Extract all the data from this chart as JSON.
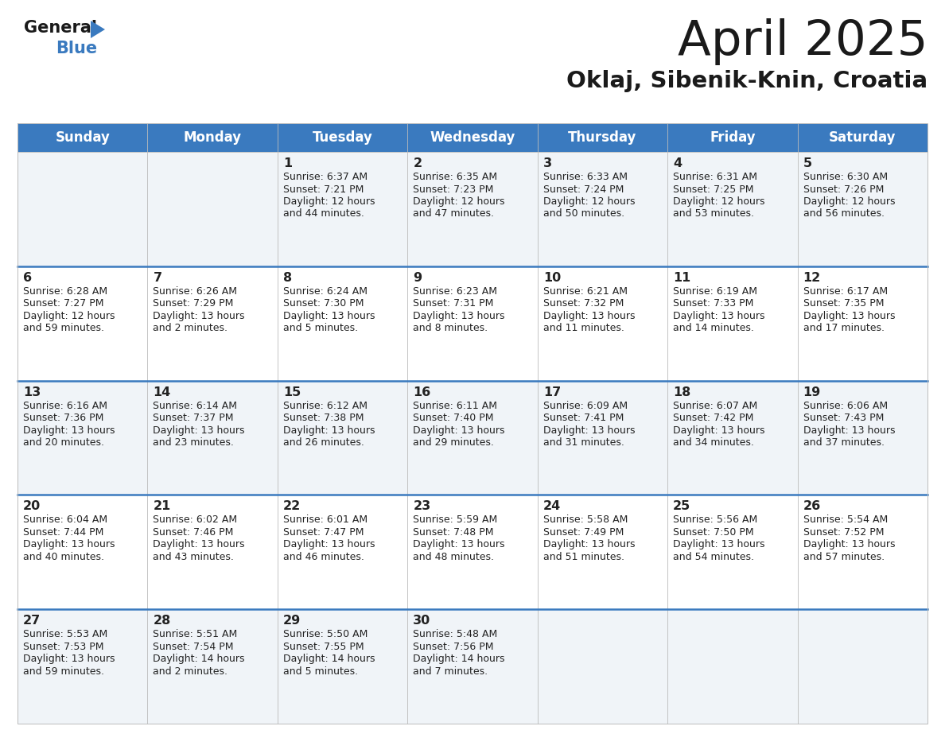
{
  "title": "April 2025",
  "subtitle": "Oklaj, Sibenik-Knin, Croatia",
  "header_bg_color": "#3a7abf",
  "header_text_color": "#ffffff",
  "day_names": [
    "Sunday",
    "Monday",
    "Tuesday",
    "Wednesday",
    "Thursday",
    "Friday",
    "Saturday"
  ],
  "bg_color": "#ffffff",
  "divider_color": "#3a7abf",
  "text_color": "#222222",
  "row_bg_odd": "#f0f4f8",
  "row_bg_even": "#ffffff",
  "calendar_data": [
    [
      {
        "day": null,
        "sunrise": null,
        "sunset": null,
        "daylight": null
      },
      {
        "day": null,
        "sunrise": null,
        "sunset": null,
        "daylight": null
      },
      {
        "day": 1,
        "sunrise": "6:37 AM",
        "sunset": "7:21 PM",
        "daylight": "12 hours and 44 minutes."
      },
      {
        "day": 2,
        "sunrise": "6:35 AM",
        "sunset": "7:23 PM",
        "daylight": "12 hours and 47 minutes."
      },
      {
        "day": 3,
        "sunrise": "6:33 AM",
        "sunset": "7:24 PM",
        "daylight": "12 hours and 50 minutes."
      },
      {
        "day": 4,
        "sunrise": "6:31 AM",
        "sunset": "7:25 PM",
        "daylight": "12 hours and 53 minutes."
      },
      {
        "day": 5,
        "sunrise": "6:30 AM",
        "sunset": "7:26 PM",
        "daylight": "12 hours and 56 minutes."
      }
    ],
    [
      {
        "day": 6,
        "sunrise": "6:28 AM",
        "sunset": "7:27 PM",
        "daylight": "12 hours and 59 minutes."
      },
      {
        "day": 7,
        "sunrise": "6:26 AM",
        "sunset": "7:29 PM",
        "daylight": "13 hours and 2 minutes."
      },
      {
        "day": 8,
        "sunrise": "6:24 AM",
        "sunset": "7:30 PM",
        "daylight": "13 hours and 5 minutes."
      },
      {
        "day": 9,
        "sunrise": "6:23 AM",
        "sunset": "7:31 PM",
        "daylight": "13 hours and 8 minutes."
      },
      {
        "day": 10,
        "sunrise": "6:21 AM",
        "sunset": "7:32 PM",
        "daylight": "13 hours and 11 minutes."
      },
      {
        "day": 11,
        "sunrise": "6:19 AM",
        "sunset": "7:33 PM",
        "daylight": "13 hours and 14 minutes."
      },
      {
        "day": 12,
        "sunrise": "6:17 AM",
        "sunset": "7:35 PM",
        "daylight": "13 hours and 17 minutes."
      }
    ],
    [
      {
        "day": 13,
        "sunrise": "6:16 AM",
        "sunset": "7:36 PM",
        "daylight": "13 hours and 20 minutes."
      },
      {
        "day": 14,
        "sunrise": "6:14 AM",
        "sunset": "7:37 PM",
        "daylight": "13 hours and 23 minutes."
      },
      {
        "day": 15,
        "sunrise": "6:12 AM",
        "sunset": "7:38 PM",
        "daylight": "13 hours and 26 minutes."
      },
      {
        "day": 16,
        "sunrise": "6:11 AM",
        "sunset": "7:40 PM",
        "daylight": "13 hours and 29 minutes."
      },
      {
        "day": 17,
        "sunrise": "6:09 AM",
        "sunset": "7:41 PM",
        "daylight": "13 hours and 31 minutes."
      },
      {
        "day": 18,
        "sunrise": "6:07 AM",
        "sunset": "7:42 PM",
        "daylight": "13 hours and 34 minutes."
      },
      {
        "day": 19,
        "sunrise": "6:06 AM",
        "sunset": "7:43 PM",
        "daylight": "13 hours and 37 minutes."
      }
    ],
    [
      {
        "day": 20,
        "sunrise": "6:04 AM",
        "sunset": "7:44 PM",
        "daylight": "13 hours and 40 minutes."
      },
      {
        "day": 21,
        "sunrise": "6:02 AM",
        "sunset": "7:46 PM",
        "daylight": "13 hours and 43 minutes."
      },
      {
        "day": 22,
        "sunrise": "6:01 AM",
        "sunset": "7:47 PM",
        "daylight": "13 hours and 46 minutes."
      },
      {
        "day": 23,
        "sunrise": "5:59 AM",
        "sunset": "7:48 PM",
        "daylight": "13 hours and 48 minutes."
      },
      {
        "day": 24,
        "sunrise": "5:58 AM",
        "sunset": "7:49 PM",
        "daylight": "13 hours and 51 minutes."
      },
      {
        "day": 25,
        "sunrise": "5:56 AM",
        "sunset": "7:50 PM",
        "daylight": "13 hours and 54 minutes."
      },
      {
        "day": 26,
        "sunrise": "5:54 AM",
        "sunset": "7:52 PM",
        "daylight": "13 hours and 57 minutes."
      }
    ],
    [
      {
        "day": 27,
        "sunrise": "5:53 AM",
        "sunset": "7:53 PM",
        "daylight": "13 hours and 59 minutes."
      },
      {
        "day": 28,
        "sunrise": "5:51 AM",
        "sunset": "7:54 PM",
        "daylight": "14 hours and 2 minutes."
      },
      {
        "day": 29,
        "sunrise": "5:50 AM",
        "sunset": "7:55 PM",
        "daylight": "14 hours and 5 minutes."
      },
      {
        "day": 30,
        "sunrise": "5:48 AM",
        "sunset": "7:56 PM",
        "daylight": "14 hours and 7 minutes."
      },
      {
        "day": null,
        "sunrise": null,
        "sunset": null,
        "daylight": null
      },
      {
        "day": null,
        "sunrise": null,
        "sunset": null,
        "daylight": null
      },
      {
        "day": null,
        "sunrise": null,
        "sunset": null,
        "daylight": null
      }
    ]
  ]
}
